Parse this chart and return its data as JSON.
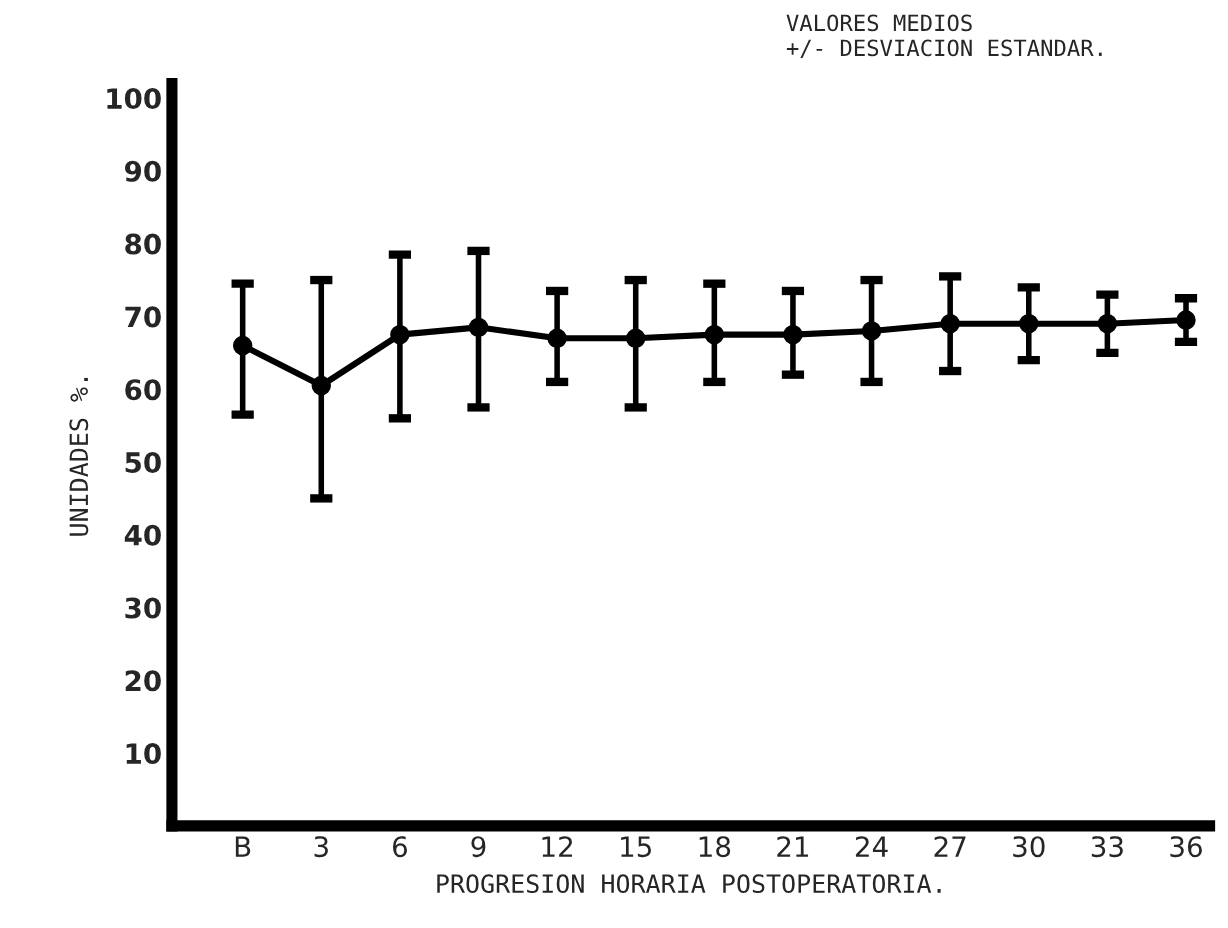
{
  "chart_data": {
    "type": "line",
    "xlabel": "PROGRESION HORARIA POSTOPERATORIA.",
    "ylabel": "UNIDADES %.",
    "categories": [
      "B",
      "3",
      "6",
      "9",
      "12",
      "15",
      "18",
      "21",
      "24",
      "27",
      "30",
      "33",
      "36"
    ],
    "series": [
      {
        "color": "#000000",
        "values": [
          66,
          60.5,
          67.5,
          68.5,
          67,
          67,
          67.5,
          67.5,
          68,
          69,
          69,
          69,
          69.5
        ],
        "errors": [
          [
            56.5,
            74.5
          ],
          [
            45,
            75
          ],
          [
            56,
            78.5
          ],
          [
            57.5,
            79
          ],
          [
            61,
            73.5
          ],
          [
            57.5,
            75
          ],
          [
            61,
            74.5
          ],
          [
            62,
            73.5
          ],
          [
            61,
            75
          ],
          [
            62.5,
            75.5
          ],
          [
            64,
            74
          ],
          [
            65,
            73
          ],
          [
            66.5,
            72.5
          ]
        ]
      }
    ],
    "ylim": [
      0,
      102
    ],
    "yticks": [
      10,
      20,
      30,
      40,
      50,
      60,
      70,
      80,
      90,
      100
    ],
    "marker": "circle",
    "line_style": "solid",
    "grid": false,
    "legend": false,
    "annotations": [
      "VALORES MEDIOS\n+/- DESVIACION ESTANDAR."
    ]
  }
}
